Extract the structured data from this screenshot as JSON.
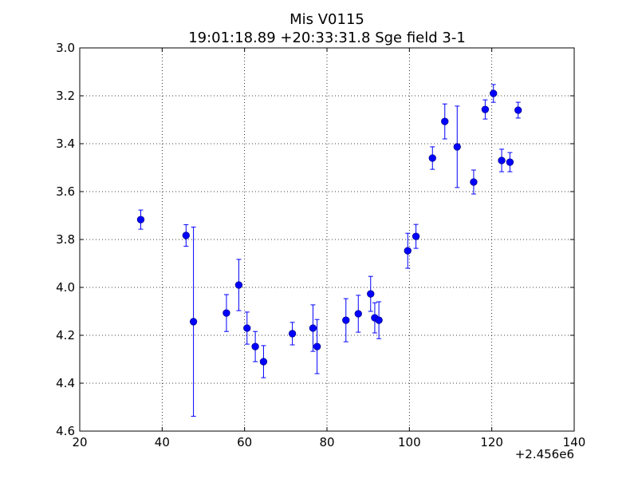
{
  "chart_data": {
    "type": "scatter",
    "title": "Mis V0115",
    "subtitle": "19:01:18.89 +20:33:31.8 Sge field 3-1",
    "xlabel": "",
    "ylabel": "",
    "x_offset_label": "+2.456e6",
    "xlim": [
      20,
      140
    ],
    "ylim": [
      4.6,
      3.0
    ],
    "y_inverted": true,
    "grid": true,
    "x_ticks": [
      20,
      40,
      60,
      80,
      100,
      120,
      140
    ],
    "x_tick_labels": [
      "20",
      "40",
      "60",
      "80",
      "100",
      "120",
      "140"
    ],
    "y_ticks": [
      3.0,
      3.2,
      3.4,
      3.6,
      3.8,
      4.0,
      4.2,
      4.4,
      4.6
    ],
    "y_tick_labels": [
      "3.0",
      "3.2",
      "3.4",
      "3.6",
      "3.8",
      "4.0",
      "4.2",
      "4.4",
      "4.6"
    ],
    "marker_color": "#0000ff",
    "points": [
      {
        "x": 34.8,
        "y": 3.717,
        "err": 0.04
      },
      {
        "x": 45.8,
        "y": 3.783,
        "err": 0.045
      },
      {
        "x": 47.6,
        "y": 4.143,
        "err": 0.395
      },
      {
        "x": 55.6,
        "y": 4.107,
        "err": 0.077
      },
      {
        "x": 58.6,
        "y": 3.99,
        "err": 0.107
      },
      {
        "x": 60.6,
        "y": 4.17,
        "err": 0.067
      },
      {
        "x": 62.6,
        "y": 4.247,
        "err": 0.063
      },
      {
        "x": 64.6,
        "y": 4.31,
        "err": 0.067
      },
      {
        "x": 71.6,
        "y": 4.193,
        "err": 0.047
      },
      {
        "x": 76.6,
        "y": 4.17,
        "err": 0.097
      },
      {
        "x": 77.6,
        "y": 4.247,
        "err": 0.113
      },
      {
        "x": 84.6,
        "y": 4.137,
        "err": 0.09
      },
      {
        "x": 87.6,
        "y": 4.11,
        "err": 0.077
      },
      {
        "x": 90.6,
        "y": 4.027,
        "err": 0.073
      },
      {
        "x": 91.6,
        "y": 4.127,
        "err": 0.063
      },
      {
        "x": 92.6,
        "y": 4.137,
        "err": 0.077
      },
      {
        "x": 99.6,
        "y": 3.847,
        "err": 0.073
      },
      {
        "x": 101.6,
        "y": 3.787,
        "err": 0.05
      },
      {
        "x": 105.6,
        "y": 3.46,
        "err": 0.047
      },
      {
        "x": 108.6,
        "y": 3.307,
        "err": 0.073
      },
      {
        "x": 111.6,
        "y": 3.413,
        "err": 0.17
      },
      {
        "x": 115.6,
        "y": 3.56,
        "err": 0.05
      },
      {
        "x": 118.4,
        "y": 3.257,
        "err": 0.04
      },
      {
        "x": 120.4,
        "y": 3.19,
        "err": 0.037
      },
      {
        "x": 122.4,
        "y": 3.47,
        "err": 0.047
      },
      {
        "x": 124.4,
        "y": 3.477,
        "err": 0.04
      },
      {
        "x": 126.4,
        "y": 3.26,
        "err": 0.033
      }
    ]
  }
}
